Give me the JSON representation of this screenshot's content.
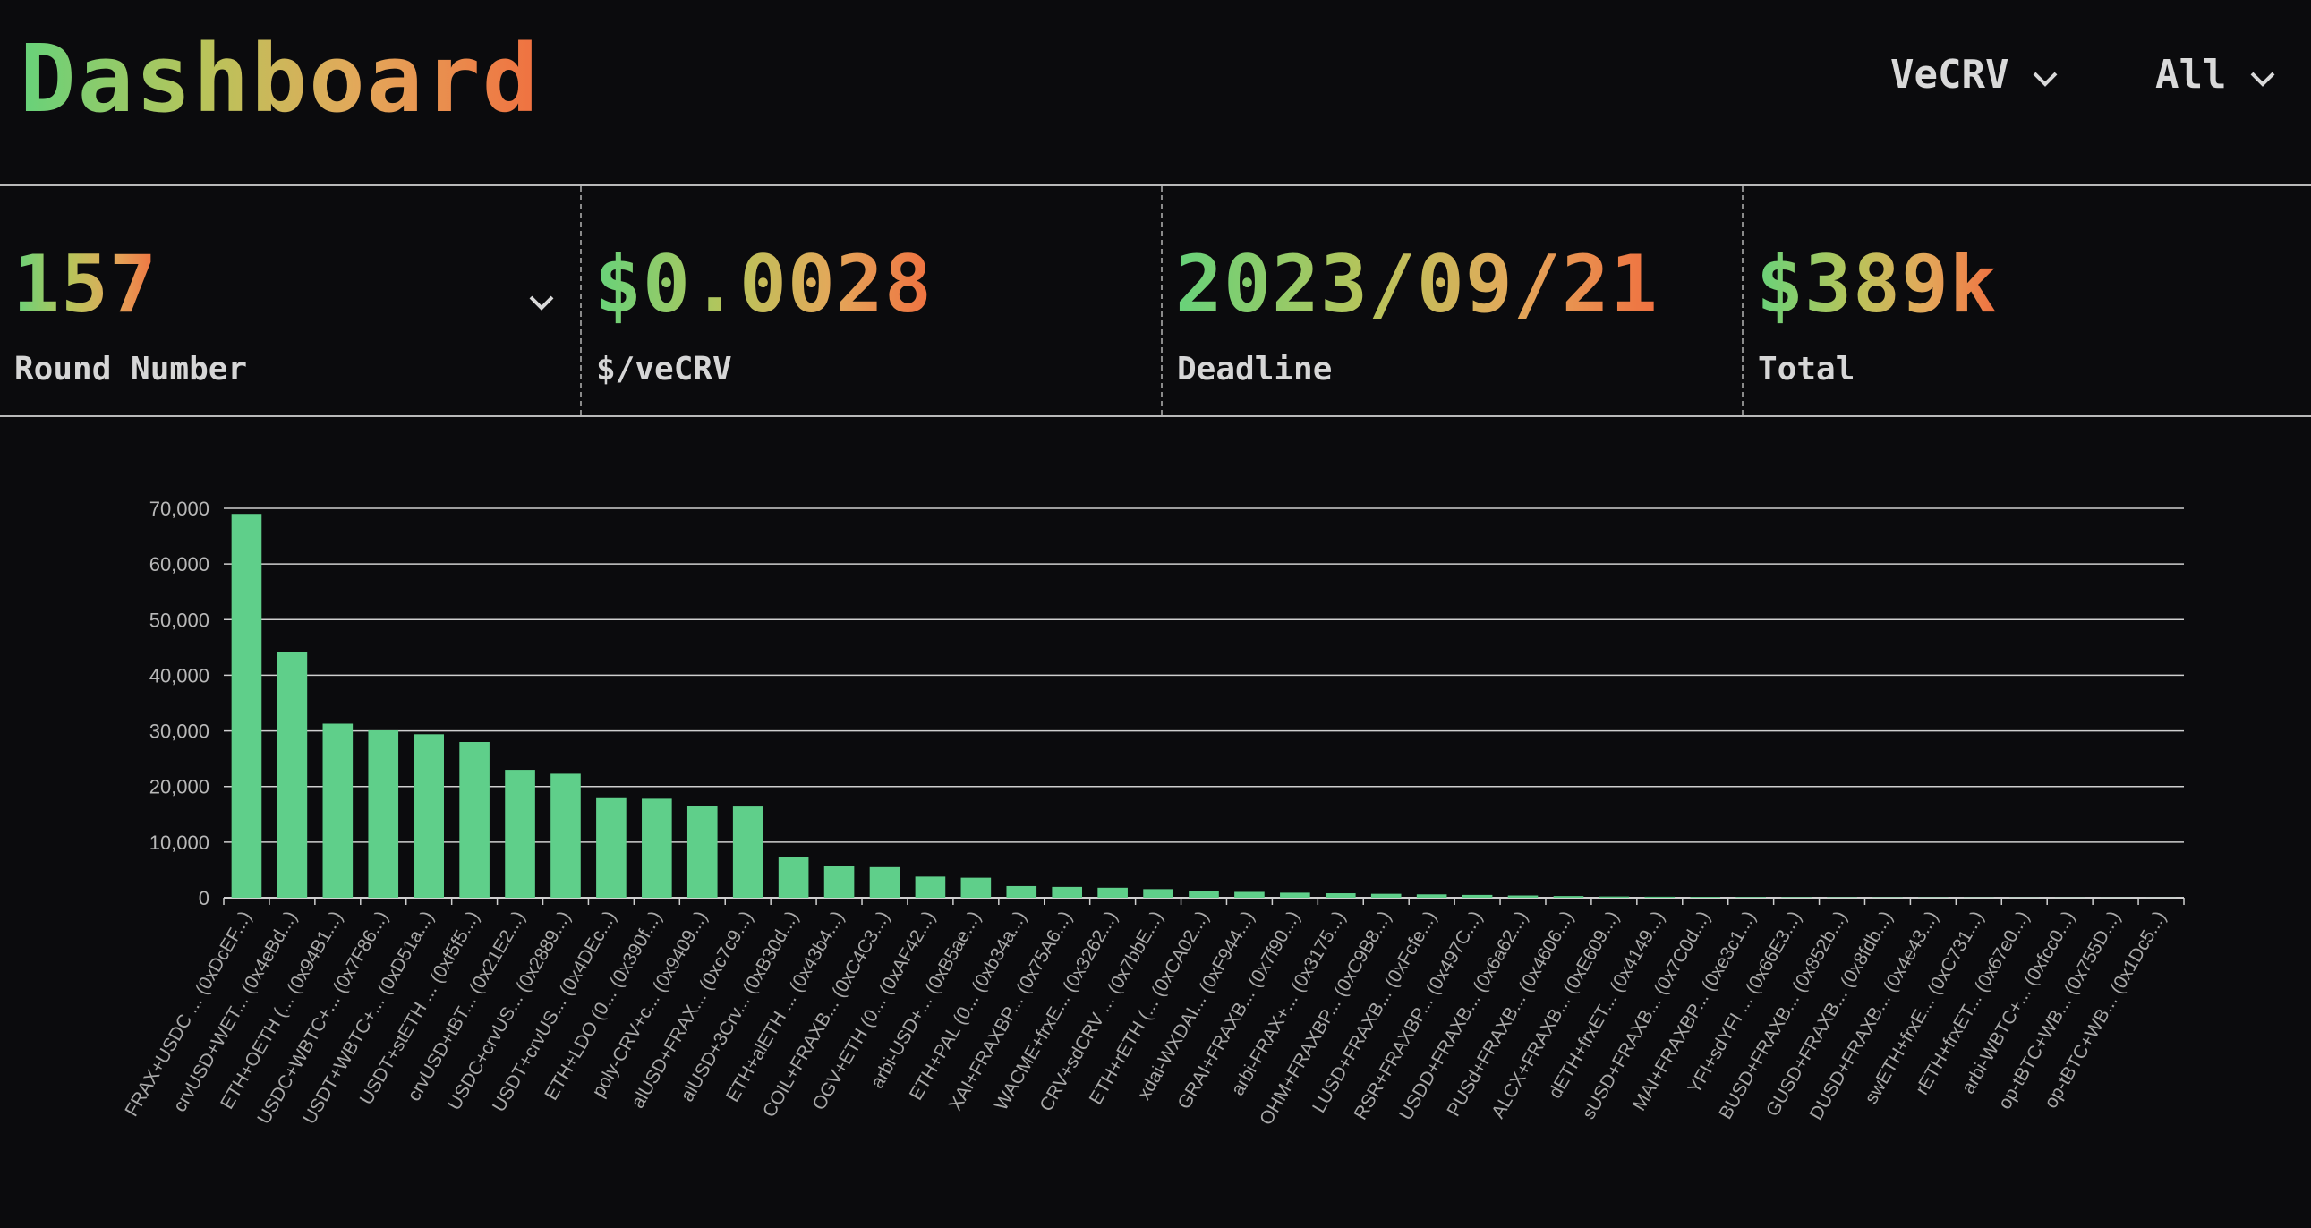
{
  "header": {
    "title": "Dashboard",
    "token_selector": "VeCRV",
    "scope_selector": "All",
    "chevron_icon": "chevron-down-icon"
  },
  "stats": [
    {
      "value": "157",
      "label": "Round Number",
      "has_dropdown": true
    },
    {
      "value": "$0.0028",
      "label": "$/veCRV"
    },
    {
      "value": "2023/09/21",
      "label": "Deadline"
    },
    {
      "value": "$389k",
      "label": "Total"
    }
  ],
  "colors": {
    "background": "#0b0b0d",
    "bar": "#5fcf8a",
    "gradient": [
      "#66d27a",
      "#b8c45a",
      "#e3a85a",
      "#f07040"
    ]
  },
  "chart_data": {
    "type": "bar",
    "ylim": [
      0,
      70000
    ],
    "yticks": [
      "0",
      "10,000",
      "20,000",
      "30,000",
      "40,000",
      "50,000",
      "60,000",
      "70,000"
    ],
    "categories": [
      "FRAX+USDC ... (0xDcEF...)",
      "crvUSD+WET... (0x4eBd...)",
      "ETH+OETH (... (0x94B1...)",
      "USDC+WBTC+... (0x7F86...)",
      "USDT+WBTC+... (0xD51a...)",
      "USDT+stETH ... (0xf5f5...)",
      "crvUSD+tBT... (0x21E2...)",
      "USDC+crvUS... (0x2889...)",
      "USDT+crvUS... (0x4DEc...)",
      "ETH+LDO (0... (0x390f...)",
      "poly-CRV+c... (0x9409...)",
      "alUSD+FRAX... (0xc7c9...)",
      "alUSD+3Crv... (0xB30d...)",
      "ETH+alETH ... (0x43b4...)",
      "COIL+FRAXB... (0xC4C3...)",
      "OGV+ETH (0... (0xAF42...)",
      "arbi-USD+... (0xB5ae...)",
      "ETH+PAL (0... (0xb34a...)",
      "XAI+FRAXBP... (0x75A6...)",
      "WACME+frxE... (0x3262...)",
      "CRV+sdCRV ... (0x7bbE...)",
      "ETH+rETH (... (0xCA02...)",
      "xdai-WXDAI... (0xF944...)",
      "GRAI+FRAXB... (0x7f90...)",
      "arbi-FRAX+... (0x3175...)",
      "OHM+FRAXBP... (0xC9B8...)",
      "LUSD+FRAXB... (0xFcfe...)",
      "RSR+FRAXBP... (0x497C...)",
      "USDD+FRAXB... (0x6a62...)",
      "PUSd+FRAXB... (0x4606...)",
      "ALCX+FRAXB... (0xE609...)",
      "dETH+frxET... (0x4149...)",
      "sUSD+FRAXB... (0x7C0d...)",
      "MAI+FRAXBP... (0xe3c1...)",
      "YFI+sdYFI ... (0x66E3...)",
      "BUSD+FRAXB... (0x852b...)",
      "GUSD+FRAXB... (0x8fdb...)",
      "DUSD+FRAXB... (0x4e43...)",
      "swETH+frxE... (0xC731...)",
      "rETH+frxET... (0x67e0...)",
      "arbi-WBTC+... (0xfcc0...)",
      "op-tBTC+WB... (0x755D...)",
      "op-tBTC+WB... (0x1Dc5...)"
    ],
    "values": [
      69000,
      44200,
      31300,
      30100,
      29400,
      28000,
      23000,
      22300,
      17900,
      17800,
      16500,
      16400,
      7300,
      5700,
      5500,
      3800,
      3600,
      2100,
      1950,
      1800,
      1550,
      1250,
      1050,
      900,
      800,
      700,
      600,
      500,
      400,
      300,
      220,
      180,
      140,
      110,
      90,
      70,
      60,
      50,
      40,
      30,
      25,
      20,
      15
    ],
    "title": "",
    "xlabel": "",
    "ylabel": "",
    "grid": true
  }
}
